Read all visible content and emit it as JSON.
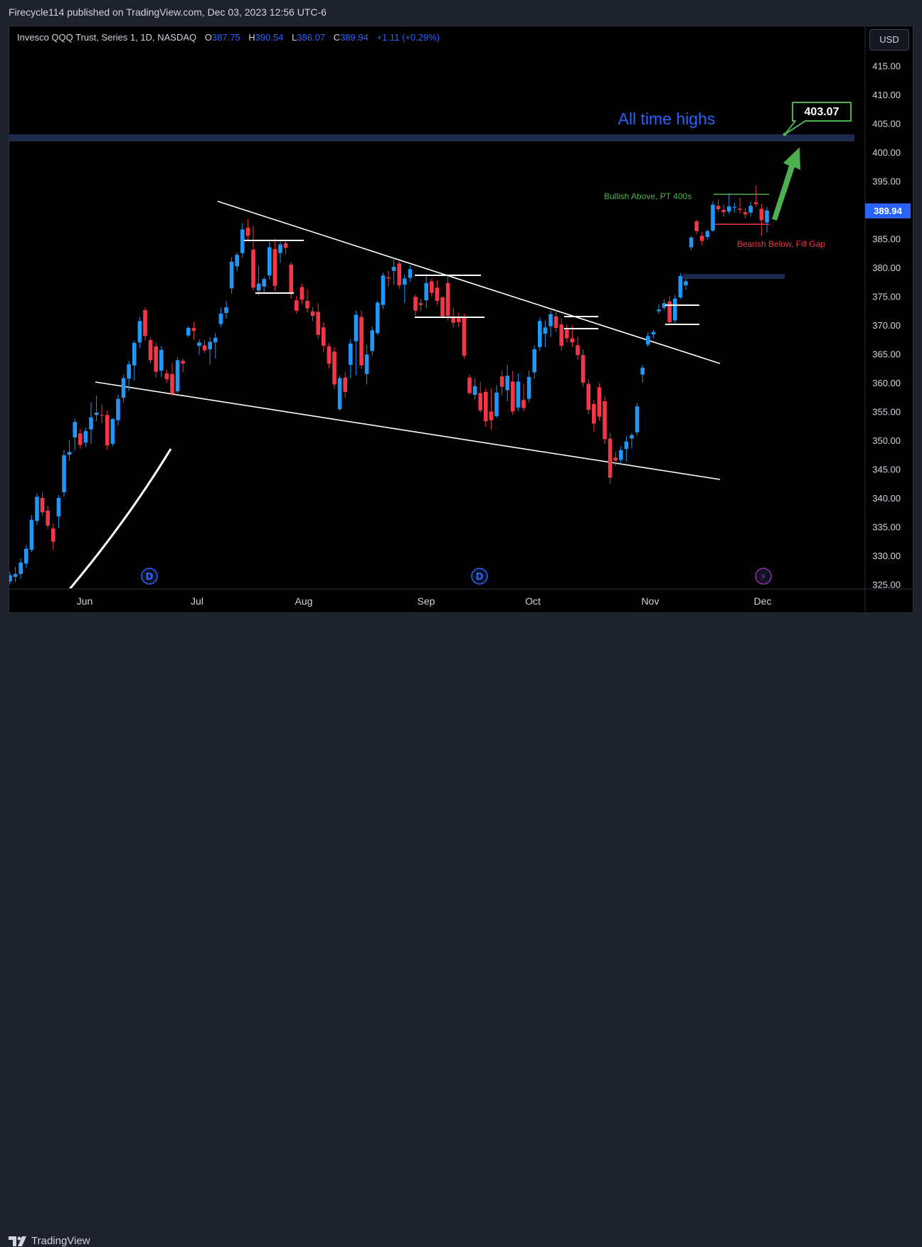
{
  "header": {
    "publisher": "Firecycle114 published on TradingView.com, Dec 03, 2023 12:56 UTC-6"
  },
  "symbol": {
    "name": "Invesco QQQ Trust, Series 1, 1D, NASDAQ",
    "o_label": "O",
    "o": "387.75",
    "h_label": "H",
    "h": "390.54",
    "l_label": "L",
    "l": "386.07",
    "c_label": "C",
    "c": "389.94",
    "change": "+1.11 (+0.29%)"
  },
  "currency": "USD",
  "footer": {
    "brand": "TradingView"
  },
  "colors": {
    "up": "#2196f3",
    "down": "#f23645",
    "background": "#000000",
    "accent": "#2962ff",
    "bullish": "#4caf50"
  },
  "chart_data": {
    "type": "candlestick",
    "y_axis": {
      "range": [
        325,
        417
      ],
      "ticks": [
        "415.00",
        "410.00",
        "405.00",
        "400.00",
        "395.00",
        "390.00",
        "385.00",
        "380.00",
        "375.00",
        "370.00",
        "365.00",
        "360.00",
        "355.00",
        "350.00",
        "345.00",
        "340.00",
        "335.00",
        "330.00",
        "325.00"
      ]
    },
    "x_axis": {
      "labels": [
        "Jun",
        "Jul",
        "Aug",
        "Sep",
        "Oct",
        "Nov",
        "Dec"
      ]
    },
    "last_price": "389.94",
    "target_price": "403.07",
    "annotations": {
      "all_time_highs": "All time highs",
      "bullish": "Bullish Above, PT 400s",
      "bearish": "Bearish Below, Fill Gap"
    },
    "events": [
      "D",
      "D",
      "⚡"
    ],
    "levels": {
      "ath": 402.5,
      "gap": 378.5,
      "bull": 392.7,
      "bear": 387.5
    },
    "candles": [
      {
        "o": 325.5,
        "h": 327.2,
        "l": 325.0,
        "c": 326.6
      },
      {
        "o": 326.3,
        "h": 328.0,
        "l": 325.4,
        "c": 326.8
      },
      {
        "o": 326.8,
        "h": 329.5,
        "l": 326.0,
        "c": 328.8
      },
      {
        "o": 328.6,
        "h": 331.8,
        "l": 327.8,
        "c": 331.2
      },
      {
        "o": 331.0,
        "h": 337.0,
        "l": 330.6,
        "c": 336.2
      },
      {
        "o": 336.0,
        "h": 340.8,
        "l": 335.3,
        "c": 340.2
      },
      {
        "o": 340.0,
        "h": 341.0,
        "l": 336.9,
        "c": 337.5
      },
      {
        "o": 337.8,
        "h": 338.7,
        "l": 334.6,
        "c": 335.2
      },
      {
        "o": 334.7,
        "h": 335.6,
        "l": 330.9,
        "c": 332.4
      },
      {
        "o": 336.8,
        "h": 340.5,
        "l": 334.8,
        "c": 340.0
      },
      {
        "o": 341.0,
        "h": 348.3,
        "l": 340.2,
        "c": 347.4
      },
      {
        "o": 347.5,
        "h": 350.0,
        "l": 346.5,
        "c": 348.0
      },
      {
        "o": 350.5,
        "h": 353.8,
        "l": 348.2,
        "c": 353.2
      },
      {
        "o": 351.2,
        "h": 352.0,
        "l": 348.5,
        "c": 349.2
      },
      {
        "o": 349.6,
        "h": 352.2,
        "l": 348.8,
        "c": 351.6
      },
      {
        "o": 351.9,
        "h": 356.6,
        "l": 349.4,
        "c": 354.0
      },
      {
        "o": 354.4,
        "h": 357.8,
        "l": 353.3,
        "c": 354.8
      },
      {
        "o": 354.4,
        "h": 356.2,
        "l": 353.0,
        "c": 354.3
      },
      {
        "o": 354.4,
        "h": 355.2,
        "l": 348.3,
        "c": 349.1
      },
      {
        "o": 349.4,
        "h": 353.9,
        "l": 349.0,
        "c": 353.7
      },
      {
        "o": 353.5,
        "h": 357.9,
        "l": 352.6,
        "c": 357.2
      },
      {
        "o": 357.4,
        "h": 361.4,
        "l": 356.6,
        "c": 360.8
      },
      {
        "o": 360.7,
        "h": 363.8,
        "l": 358.6,
        "c": 363.2
      },
      {
        "o": 363.0,
        "h": 367.3,
        "l": 360.4,
        "c": 366.9
      },
      {
        "o": 367.0,
        "h": 371.4,
        "l": 366.0,
        "c": 370.7
      },
      {
        "o": 372.6,
        "h": 373.1,
        "l": 367.3,
        "c": 368.1
      },
      {
        "o": 367.4,
        "h": 367.8,
        "l": 363.3,
        "c": 363.9
      },
      {
        "o": 366.3,
        "h": 366.9,
        "l": 360.9,
        "c": 361.9
      },
      {
        "o": 362.1,
        "h": 366.4,
        "l": 361.0,
        "c": 365.7
      },
      {
        "o": 361.6,
        "h": 362.2,
        "l": 360.0,
        "c": 360.6
      },
      {
        "o": 361.5,
        "h": 363.4,
        "l": 357.7,
        "c": 358.1
      },
      {
        "o": 358.5,
        "h": 364.4,
        "l": 358.2,
        "c": 363.9
      },
      {
        "o": 363.8,
        "h": 364.2,
        "l": 361.8,
        "c": 363.3
      },
      {
        "o": 368.2,
        "h": 369.8,
        "l": 367.9,
        "c": 369.5
      },
      {
        "o": 369.5,
        "h": 370.6,
        "l": 367.4,
        "c": 369.0
      },
      {
        "o": 366.4,
        "h": 367.5,
        "l": 364.8,
        "c": 367.0
      },
      {
        "o": 366.5,
        "h": 367.4,
        "l": 365.2,
        "c": 365.6
      },
      {
        "o": 365.8,
        "h": 367.9,
        "l": 363.1,
        "c": 367.1
      },
      {
        "o": 367.0,
        "h": 368.6,
        "l": 364.2,
        "c": 367.8
      },
      {
        "o": 370.2,
        "h": 373.0,
        "l": 369.6,
        "c": 372.0
      },
      {
        "o": 372.1,
        "h": 374.2,
        "l": 371.1,
        "c": 373.1
      },
      {
        "o": 376.4,
        "h": 381.8,
        "l": 375.5,
        "c": 381.0
      },
      {
        "o": 380.2,
        "h": 382.6,
        "l": 379.3,
        "c": 382.2
      },
      {
        "o": 382.5,
        "h": 387.7,
        "l": 381.7,
        "c": 386.6
      },
      {
        "o": 386.9,
        "h": 388.4,
        "l": 384.5,
        "c": 385.5
      },
      {
        "o": 383.1,
        "h": 387.2,
        "l": 376.0,
        "c": 376.5
      },
      {
        "o": 376.0,
        "h": 380.3,
        "l": 375.2,
        "c": 377.2
      },
      {
        "o": 376.7,
        "h": 378.4,
        "l": 375.7,
        "c": 378.0
      },
      {
        "o": 378.6,
        "h": 384.4,
        "l": 377.9,
        "c": 383.5
      },
      {
        "o": 383.2,
        "h": 385.0,
        "l": 375.9,
        "c": 376.8
      },
      {
        "o": 382.5,
        "h": 384.5,
        "l": 380.8,
        "c": 384.0
      },
      {
        "o": 384.2,
        "h": 384.9,
        "l": 382.3,
        "c": 383.4
      },
      {
        "o": 380.5,
        "h": 381.0,
        "l": 374.6,
        "c": 375.4
      },
      {
        "o": 374.3,
        "h": 375.1,
        "l": 372.0,
        "c": 372.5
      },
      {
        "o": 376.6,
        "h": 377.2,
        "l": 373.6,
        "c": 374.4
      },
      {
        "o": 374.2,
        "h": 376.2,
        "l": 372.2,
        "c": 372.9
      },
      {
        "o": 372.4,
        "h": 373.1,
        "l": 370.7,
        "c": 371.6
      },
      {
        "o": 372.3,
        "h": 373.8,
        "l": 367.6,
        "c": 368.3
      },
      {
        "o": 369.6,
        "h": 370.5,
        "l": 365.3,
        "c": 366.4
      },
      {
        "o": 366.3,
        "h": 366.8,
        "l": 362.5,
        "c": 363.3
      },
      {
        "o": 365.4,
        "h": 366.2,
        "l": 358.9,
        "c": 359.7
      },
      {
        "o": 355.4,
        "h": 361.3,
        "l": 355.1,
        "c": 360.8
      },
      {
        "o": 360.9,
        "h": 361.8,
        "l": 357.4,
        "c": 358.4
      },
      {
        "o": 363.1,
        "h": 367.6,
        "l": 360.7,
        "c": 366.8
      },
      {
        "o": 367.2,
        "h": 372.5,
        "l": 361.3,
        "c": 371.8
      },
      {
        "o": 371.4,
        "h": 372.5,
        "l": 362.4,
        "c": 363.0
      },
      {
        "o": 361.5,
        "h": 366.6,
        "l": 359.7,
        "c": 364.9
      },
      {
        "o": 365.5,
        "h": 369.8,
        "l": 364.7,
        "c": 369.1
      },
      {
        "o": 368.6,
        "h": 374.3,
        "l": 368.3,
        "c": 373.9
      },
      {
        "o": 373.5,
        "h": 379.1,
        "l": 372.8,
        "c": 378.6
      },
      {
        "o": 378.3,
        "h": 379.4,
        "l": 376.7,
        "c": 378.1
      },
      {
        "o": 379.4,
        "h": 381.6,
        "l": 377.0,
        "c": 380.1
      },
      {
        "o": 380.7,
        "h": 381.2,
        "l": 376.3,
        "c": 376.9
      },
      {
        "o": 377.0,
        "h": 378.8,
        "l": 373.8,
        "c": 378.1
      },
      {
        "o": 378.2,
        "h": 380.4,
        "l": 377.5,
        "c": 379.7
      },
      {
        "o": 374.9,
        "h": 375.3,
        "l": 371.6,
        "c": 372.5
      },
      {
        "o": 373.8,
        "h": 374.6,
        "l": 372.4,
        "c": 373.5
      },
      {
        "o": 374.3,
        "h": 378.9,
        "l": 373.0,
        "c": 377.3
      },
      {
        "o": 377.6,
        "h": 378.1,
        "l": 375.0,
        "c": 375.6
      },
      {
        "o": 376.5,
        "h": 377.8,
        "l": 373.5,
        "c": 374.2
      },
      {
        "o": 374.8,
        "h": 375.1,
        "l": 371.2,
        "c": 371.5
      },
      {
        "o": 377.3,
        "h": 378.5,
        "l": 370.8,
        "c": 371.6
      },
      {
        "o": 371.5,
        "h": 373.0,
        "l": 369.6,
        "c": 370.4
      },
      {
        "o": 371.2,
        "h": 372.2,
        "l": 369.6,
        "c": 370.5
      },
      {
        "o": 371.3,
        "h": 371.9,
        "l": 364.2,
        "c": 364.7
      },
      {
        "o": 360.9,
        "h": 361.4,
        "l": 357.9,
        "c": 358.2
      },
      {
        "o": 357.9,
        "h": 360.8,
        "l": 357.1,
        "c": 359.4
      },
      {
        "o": 358.2,
        "h": 360.1,
        "l": 354.8,
        "c": 355.2
      },
      {
        "o": 358.4,
        "h": 359.0,
        "l": 352.3,
        "c": 353.3
      },
      {
        "o": 355.0,
        "h": 359.0,
        "l": 351.8,
        "c": 353.5
      },
      {
        "o": 354.2,
        "h": 359.6,
        "l": 353.9,
        "c": 358.3
      },
      {
        "o": 361.1,
        "h": 362.1,
        "l": 357.8,
        "c": 359.3
      },
      {
        "o": 358.7,
        "h": 363.1,
        "l": 356.8,
        "c": 361.2
      },
      {
        "o": 360.2,
        "h": 362.0,
        "l": 354.4,
        "c": 355.0
      },
      {
        "o": 355.7,
        "h": 361.6,
        "l": 355.1,
        "c": 360.2
      },
      {
        "o": 357.0,
        "h": 359.8,
        "l": 355.0,
        "c": 355.6
      },
      {
        "o": 357.2,
        "h": 362.1,
        "l": 356.6,
        "c": 361.0
      },
      {
        "o": 361.8,
        "h": 366.5,
        "l": 360.7,
        "c": 365.8
      },
      {
        "o": 366.2,
        "h": 371.3,
        "l": 365.5,
        "c": 370.7
      },
      {
        "o": 368.5,
        "h": 370.8,
        "l": 366.2,
        "c": 369.6
      },
      {
        "o": 369.8,
        "h": 372.5,
        "l": 367.9,
        "c": 371.9
      },
      {
        "o": 371.5,
        "h": 372.7,
        "l": 368.8,
        "c": 369.5
      },
      {
        "o": 370.1,
        "h": 371.2,
        "l": 365.6,
        "c": 366.4
      },
      {
        "o": 369.2,
        "h": 370.1,
        "l": 367.0,
        "c": 367.7
      },
      {
        "o": 367.7,
        "h": 370.0,
        "l": 366.2,
        "c": 367.0
      },
      {
        "o": 366.5,
        "h": 368.0,
        "l": 364.0,
        "c": 364.8
      },
      {
        "o": 364.8,
        "h": 365.8,
        "l": 359.2,
        "c": 360.0
      },
      {
        "o": 359.8,
        "h": 360.6,
        "l": 354.5,
        "c": 355.3
      },
      {
        "o": 356.3,
        "h": 357.0,
        "l": 351.5,
        "c": 352.9
      },
      {
        "o": 359.2,
        "h": 359.9,
        "l": 353.4,
        "c": 354.1
      },
      {
        "o": 356.8,
        "h": 357.7,
        "l": 349.4,
        "c": 350.2
      },
      {
        "o": 350.3,
        "h": 351.3,
        "l": 342.5,
        "c": 343.5
      },
      {
        "o": 347.0,
        "h": 348.0,
        "l": 345.6,
        "c": 346.5
      },
      {
        "o": 346.6,
        "h": 349.0,
        "l": 345.7,
        "c": 348.3
      },
      {
        "o": 348.5,
        "h": 350.7,
        "l": 346.3,
        "c": 349.8
      },
      {
        "o": 350.3,
        "h": 351.3,
        "l": 348.6,
        "c": 350.9
      },
      {
        "o": 351.4,
        "h": 356.5,
        "l": 350.8,
        "c": 355.9
      },
      {
        "o": 361.4,
        "h": 363.1,
        "l": 360.0,
        "c": 362.6
      },
      {
        "o": 366.6,
        "h": 368.8,
        "l": 366.2,
        "c": 368.1
      },
      {
        "o": 368.4,
        "h": 369.2,
        "l": 367.7,
        "c": 368.8
      },
      {
        "o": 372.4,
        "h": 373.6,
        "l": 371.9,
        "c": 372.7
      },
      {
        "o": 373.0,
        "h": 374.5,
        "l": 372.6,
        "c": 373.8
      },
      {
        "o": 374.1,
        "h": 375.0,
        "l": 370.0,
        "c": 370.5
      },
      {
        "o": 370.8,
        "h": 375.2,
        "l": 370.2,
        "c": 374.6
      },
      {
        "o": 374.8,
        "h": 379.0,
        "l": 374.5,
        "c": 378.5
      },
      {
        "o": 376.9,
        "h": 378.0,
        "l": 376.1,
        "c": 377.6
      },
      {
        "o": 383.5,
        "h": 385.5,
        "l": 383.0,
        "c": 385.2
      },
      {
        "o": 388.0,
        "h": 388.3,
        "l": 385.8,
        "c": 386.3
      },
      {
        "o": 385.5,
        "h": 386.2,
        "l": 383.8,
        "c": 384.6
      },
      {
        "o": 385.3,
        "h": 386.6,
        "l": 384.8,
        "c": 386.3
      },
      {
        "o": 386.4,
        "h": 391.5,
        "l": 386.2,
        "c": 390.9
      },
      {
        "o": 390.7,
        "h": 391.8,
        "l": 389.6,
        "c": 390.1
      },
      {
        "o": 390.0,
        "h": 391.0,
        "l": 388.8,
        "c": 389.6
      },
      {
        "o": 389.7,
        "h": 392.9,
        "l": 389.3,
        "c": 390.6
      },
      {
        "o": 390.4,
        "h": 391.2,
        "l": 389.5,
        "c": 390.5
      },
      {
        "o": 390.2,
        "h": 392.1,
        "l": 389.4,
        "c": 390.0
      },
      {
        "o": 389.6,
        "h": 390.3,
        "l": 388.5,
        "c": 389.2
      },
      {
        "o": 389.5,
        "h": 391.4,
        "l": 388.8,
        "c": 390.7
      },
      {
        "o": 391.3,
        "h": 394.2,
        "l": 390.5,
        "c": 391.0
      },
      {
        "o": 390.2,
        "h": 391.0,
        "l": 385.5,
        "c": 388.2
      },
      {
        "o": 387.8,
        "h": 390.5,
        "l": 386.1,
        "c": 389.9
      }
    ]
  }
}
